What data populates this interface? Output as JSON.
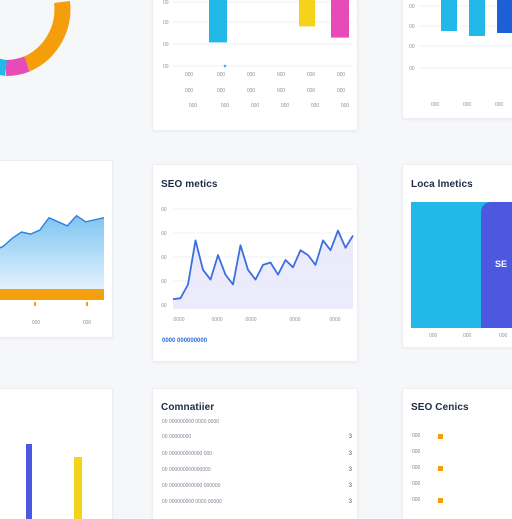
{
  "colors": {
    "accent_blue": "#1f5fd6",
    "cyan": "#22b8e8",
    "magenta": "#e64bb8",
    "yellow": "#f5d31a",
    "orange": "#f59e0b",
    "indigo": "#4c58e0",
    "page_bg": "#f6f7f9"
  },
  "top_left": {
    "ring_colors": [
      "#f59e0b",
      "#e64bb8",
      "#22b8e8"
    ]
  },
  "top_center": {
    "y_ticks": [
      "00",
      "00",
      "00",
      "00"
    ],
    "x_ticks": [
      "000",
      "000",
      "000",
      "000",
      "000",
      "000"
    ],
    "x_ticks_2": [
      "000",
      "000",
      "000",
      "000",
      "000",
      "000"
    ],
    "bars": [
      {
        "value": 58,
        "color": "#22b8e8"
      },
      {
        "value": 38,
        "color": "#f5d31a"
      },
      {
        "value": 52,
        "color": "#e64bb8"
      }
    ]
  },
  "top_right": {
    "y_ticks": [
      "00",
      "00",
      "00",
      "00"
    ],
    "x_ticks": [
      "000",
      "000",
      "000"
    ],
    "bars": [
      {
        "value": 35,
        "color": "#22b8e8"
      },
      {
        "value": 40,
        "color": "#22b8e8"
      },
      {
        "value": 37,
        "color": "#1f5fd6"
      }
    ]
  },
  "mid_left": {
    "x_ticks": [
      "000",
      "000"
    ]
  },
  "seo_metrics": {
    "title": "SEO metics",
    "link": "0000 000000000",
    "y_ticks": [
      "00",
      "00",
      "00",
      "00",
      "00"
    ],
    "x_ticks": [
      "0000",
      "0000",
      "0000",
      "0000",
      "0000"
    ]
  },
  "local_metrics": {
    "title": "Loca lmetics",
    "tile_label": "SE"
  },
  "conversion": {
    "title": "Comnatiier",
    "rows": [
      {
        "label": "00 000000000 0000 0000",
        "value": ""
      },
      {
        "label": "00 00000000",
        "value": "3"
      },
      {
        "label": "00 000000000000 000",
        "value": "3"
      },
      {
        "label": "00 000000000000000",
        "value": "3"
      },
      {
        "label": "00 000000000000 000000",
        "value": "3"
      },
      {
        "label": "00 000000000 0000 00000",
        "value": "3"
      }
    ]
  },
  "seo_centers": {
    "title": "SEO Cenics",
    "rows": [
      "000",
      "000",
      "000",
      "000",
      "000"
    ]
  },
  "chart_data": [
    {
      "type": "line",
      "title": "SEO metics",
      "xlabel": "",
      "ylabel": "",
      "x": [
        1,
        2,
        3,
        4,
        5,
        6,
        7,
        8,
        9,
        10,
        11,
        12,
        13,
        14,
        15,
        16,
        17,
        18,
        19,
        20,
        21,
        22,
        23,
        24,
        25
      ],
      "y": [
        2,
        2.2,
        5,
        14,
        8,
        6,
        11,
        7,
        5,
        13,
        8,
        6,
        9,
        9.5,
        7,
        10,
        8.5,
        12,
        11,
        9,
        14,
        12,
        16,
        12.5,
        15
      ],
      "ylim": [
        0,
        20
      ],
      "area": true,
      "grid": true
    },
    {
      "type": "area",
      "title": "",
      "x": [
        1,
        2,
        3,
        4,
        5,
        6,
        7,
        8,
        9,
        10,
        11,
        12,
        13
      ],
      "y": [
        10,
        12,
        16,
        19,
        18,
        20,
        26,
        24,
        22,
        27,
        24,
        25,
        26
      ],
      "ylim": [
        0,
        40
      ]
    }
  ]
}
